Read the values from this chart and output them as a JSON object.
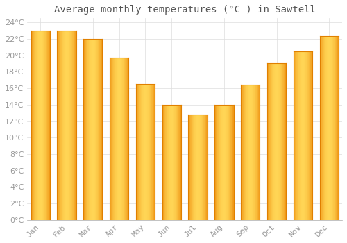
{
  "title": "Average monthly temperatures (°C ) in Sawtell",
  "months": [
    "Jan",
    "Feb",
    "Mar",
    "Apr",
    "May",
    "Jun",
    "Jul",
    "Aug",
    "Sep",
    "Oct",
    "Nov",
    "Dec"
  ],
  "values": [
    23.0,
    23.0,
    22.0,
    19.7,
    16.5,
    14.0,
    12.8,
    14.0,
    16.4,
    19.0,
    20.5,
    22.3
  ],
  "bar_color_left": "#F5A623",
  "bar_color_center": "#FFD060",
  "bar_color_right": "#F5A623",
  "ylim": [
    0,
    24.5
  ],
  "ytick_max": 24,
  "ytick_interval": 2,
  "background_color": "#FFFFFF",
  "plot_bg_color": "#FFFFFF",
  "grid_color": "#DDDDDD",
  "title_fontsize": 10,
  "tick_fontsize": 8,
  "tick_color": "#999999",
  "title_color": "#555555"
}
